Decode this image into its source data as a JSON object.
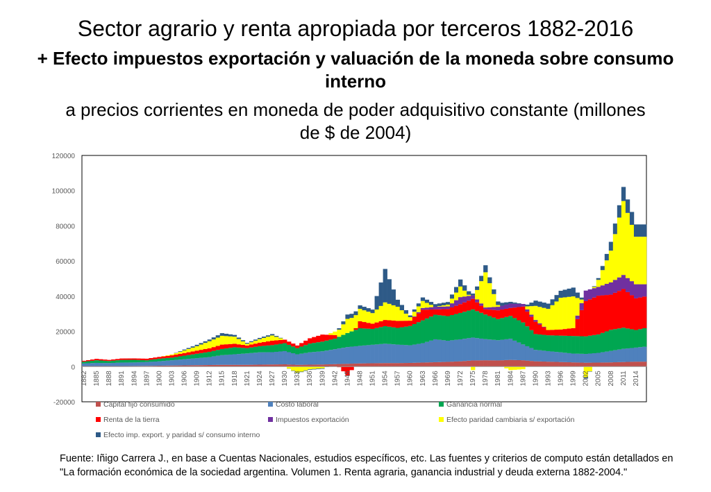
{
  "slide": {
    "title": "Sector agrario y renta apropiada por terceros 1882-2016",
    "subtitle_bold": "+ Efecto impuestos exportación y valuación de la moneda sobre consumo interno",
    "subtitle": "a precios corrientes en moneda de poder adquisitivo constante (millones de $ de 2004)",
    "source_line1": "Fuente: Iñigo Carrera J.,  en base a Cuentas Nacionales, estudios específicos, etc. Las fuentes y criterios de computo están detallados en",
    "source_line2": "\"La formación económica de la sociedad argentina. Volumen 1. Renta agraria, ganancia industrial y deuda externa 1882-2004.\""
  },
  "chart_data": {
    "type": "bar",
    "stacked": true,
    "ylim": [
      -20000,
      120000
    ],
    "yticks": [
      -20000,
      0,
      20000,
      40000,
      60000,
      80000,
      100000,
      120000
    ],
    "xtick_labels": [
      "1882",
      "1885",
      "1888",
      "1891",
      "1894",
      "1897",
      "1900",
      "1903",
      "1906",
      "1909",
      "1912",
      "1915",
      "1918",
      "1921",
      "1924",
      "1927",
      "1930",
      "1933",
      "1936",
      "1939",
      "1942",
      "1945",
      "1948",
      "1951",
      "1954",
      "1957",
      "1960",
      "1963",
      "1966",
      "1969",
      "1972",
      "1975",
      "1978",
      "1981",
      "1984",
      "1987",
      "1990",
      "1993",
      "1996",
      "1999",
      "2002",
      "2005",
      "2008",
      "2011",
      "2014"
    ],
    "legend_position": "bottom",
    "series": [
      {
        "name": "Capital fijo consumido",
        "color": "#c0504d"
      },
      {
        "name": "Costo laboral",
        "color": "#4f81bd"
      },
      {
        "name": "Ganancia normal",
        "color": "#00a651"
      },
      {
        "name": "Renta de la tierra",
        "color": "#ff0000"
      },
      {
        "name": "Impuestos exportación",
        "color": "#7030a0"
      },
      {
        "name": "Efecto paridad cambiaria s/ exportación",
        "color": "#ffff00"
      },
      {
        "name": "Efecto imp. export. y paridad s/ consumo interno",
        "color": "#2e5a87"
      }
    ],
    "key_years": [
      1882,
      1885,
      1888,
      1891,
      1894,
      1897,
      1900,
      1903,
      1906,
      1909,
      1912,
      1915,
      1918,
      1921,
      1924,
      1927,
      1930,
      1933,
      1936,
      1939,
      1942,
      1945,
      1948,
      1951,
      1954,
      1957,
      1960,
      1963,
      1966,
      1969,
      1972,
      1975,
      1978,
      1981,
      1984,
      1987,
      1990,
      1993,
      1996,
      1999,
      2002,
      2005,
      2008,
      2011,
      2014,
      2016
    ],
    "key_values": {
      "Capital fijo consumido": [
        300,
        300,
        300,
        300,
        350,
        400,
        500,
        600,
        700,
        800,
        900,
        1000,
        1000,
        1000,
        1100,
        1200,
        1300,
        1000,
        1100,
        1200,
        1400,
        1600,
        1800,
        1900,
        2000,
        2000,
        2100,
        2300,
        2500,
        2700,
        3000,
        3500,
        3600,
        3500,
        3800,
        3600,
        3000,
        2800,
        2600,
        2400,
        2200,
        2300,
        2400,
        2600,
        2800,
        2800
      ],
      "Costo laboral": [
        1500,
        1800,
        1700,
        2000,
        2000,
        2200,
        2500,
        3000,
        3500,
        4000,
        4500,
        5500,
        6000,
        6500,
        7000,
        7000,
        7500,
        6000,
        7000,
        7500,
        8500,
        9500,
        10000,
        10500,
        11000,
        10500,
        10000,
        11000,
        13000,
        12000,
        12500,
        13000,
        12000,
        11500,
        12000,
        9000,
        6500,
        6000,
        5500,
        5000,
        5000,
        5500,
        6500,
        7500,
        8000,
        8500
      ],
      "Ganancia normal": [
        1000,
        1500,
        1200,
        1500,
        1500,
        1000,
        1500,
        1500,
        2000,
        2500,
        3000,
        3500,
        4000,
        3000,
        3500,
        4000,
        4500,
        3500,
        5000,
        5500,
        6000,
        8000,
        10000,
        9000,
        10000,
        9500,
        11000,
        13000,
        14000,
        14000,
        15000,
        16000,
        14000,
        12000,
        13000,
        12500,
        9000,
        9000,
        9500,
        10000,
        10000,
        10500,
        12000,
        12000,
        10000,
        10500
      ],
      "Renta de la tierra": [
        500,
        800,
        600,
        800,
        800,
        900,
        1000,
        1300,
        1500,
        1800,
        2000,
        2500,
        2000,
        1500,
        2000,
        2500,
        2000,
        1500,
        3000,
        4000,
        2000,
        -5000,
        4000,
        3000,
        3500,
        4000,
        3000,
        6000,
        3000,
        4000,
        5000,
        6000,
        3000,
        5000,
        4500,
        9000,
        7000,
        3000,
        3500,
        4500,
        20000,
        22000,
        20000,
        22000,
        18000,
        18000
      ],
      "Impuestos exportación": [
        0,
        0,
        0,
        0,
        0,
        0,
        0,
        0,
        0,
        0,
        0,
        0,
        0,
        0,
        0,
        0,
        0,
        0,
        0,
        0,
        0,
        0,
        0,
        0,
        0,
        0,
        0,
        1000,
        1500,
        1500,
        4000,
        2000,
        1000,
        2000,
        2500,
        1500,
        1000,
        0,
        0,
        0,
        6000,
        5000,
        7000,
        8000,
        8000,
        7000
      ],
      "Efecto paridad cambiaria s/ exportación": [
        0,
        0,
        0,
        0,
        0,
        0,
        0,
        500,
        1500,
        2500,
        4000,
        5000,
        4000,
        1000,
        2000,
        3000,
        0,
        -3500,
        -1500,
        -1000,
        2000,
        8000,
        7000,
        6000,
        10000,
        8000,
        2000,
        4000,
        0,
        1000,
        6000,
        -2000,
        20000,
        1000,
        -2000,
        -1500,
        8000,
        12000,
        18000,
        18000,
        -6000,
        4000,
        18000,
        42000,
        27000,
        27000
      ],
      "Efecto imp. export. y paridad s/ consumo interno": [
        0,
        0,
        0,
        0,
        0,
        0,
        0,
        0,
        500,
        800,
        1000,
        1500,
        1000,
        500,
        700,
        800,
        0,
        -300,
        -300,
        -300,
        0,
        2500,
        2000,
        2000,
        19000,
        4000,
        1000,
        2000,
        1500,
        1500,
        4000,
        1000,
        4000,
        2000,
        1000,
        0,
        3000,
        3000,
        4000,
        5000,
        -800,
        1000,
        5000,
        8000,
        7000,
        7000
      ]
    }
  }
}
